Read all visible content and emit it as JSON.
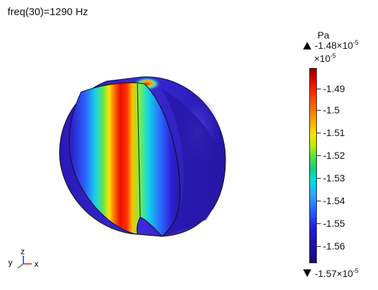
{
  "title": "freq(30)=1290 Hz",
  "colorbar": {
    "unit": "Pa",
    "max_label": "-1.48×10",
    "max_exp": "-5",
    "scale_label": "×10",
    "scale_exp": "-5",
    "min_label": "-1.57×10",
    "min_exp": "-5",
    "ticks": [
      "-1.49",
      "-1.5",
      "-1.51",
      "-1.52",
      "-1.53",
      "-1.54",
      "-1.55",
      "-1.56"
    ]
  },
  "axes_triad": {
    "y": "y",
    "z": "z",
    "x": "x"
  },
  "icons": [
    "triangle-up-icon",
    "triangle-down-icon",
    "axes-triad-icon"
  ]
}
